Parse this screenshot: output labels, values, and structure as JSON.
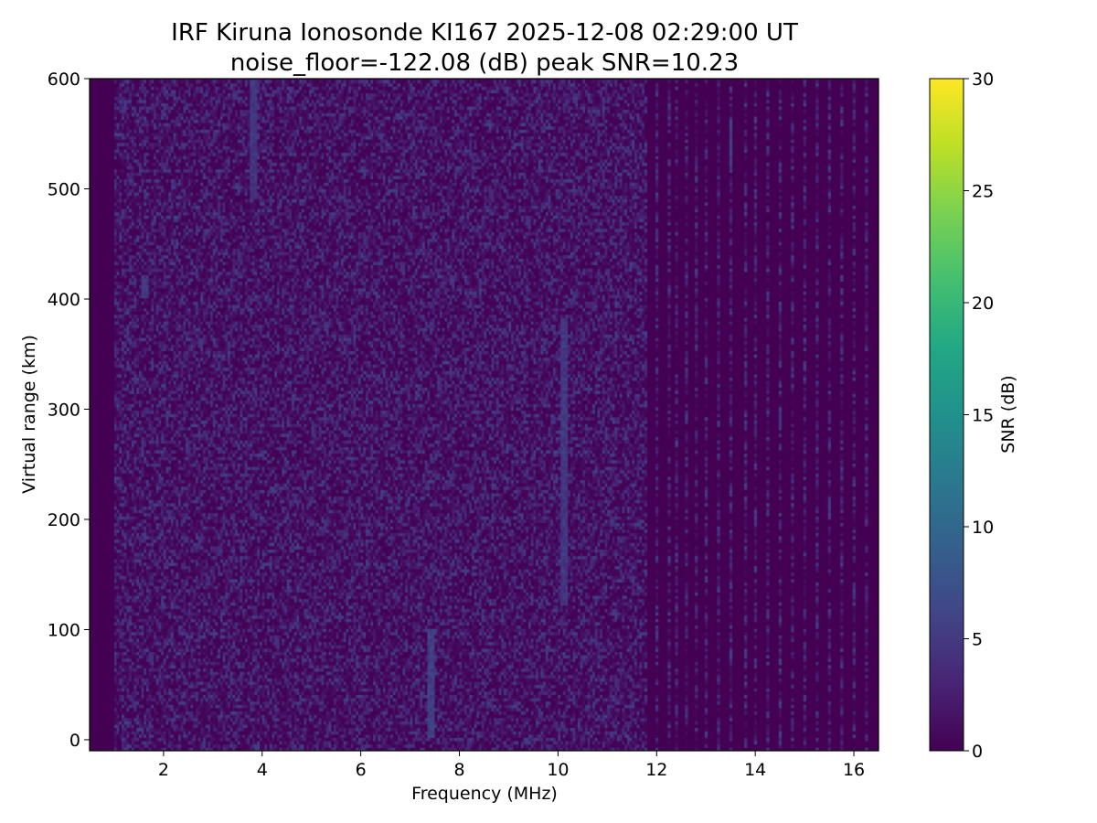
{
  "chart_data": {
    "type": "heatmap",
    "title_lines": [
      "IRF Kiruna Ionosonde KI167 2025-12-08 02:29:00  UT",
      "noise_floor=-122.08 (dB) peak SNR=10.23"
    ],
    "xlabel": "Frequency (MHz)",
    "ylabel": "Virtual range (km)",
    "colorbar_label": "SNR (dB)",
    "colormap": "viridis",
    "xlim": [
      0.5,
      16.5
    ],
    "ylim": [
      -10,
      600
    ],
    "clim": [
      0,
      30
    ],
    "x_ticks": [
      2,
      4,
      6,
      8,
      10,
      12,
      14,
      16
    ],
    "x_tick_labels": [
      "2",
      "4",
      "6",
      "8",
      "10",
      "12",
      "14",
      "16"
    ],
    "y_ticks": [
      0,
      100,
      200,
      300,
      400,
      500,
      600
    ],
    "y_tick_labels": [
      "0",
      "100",
      "200",
      "300",
      "400",
      "500",
      "600"
    ],
    "colorbar_ticks": [
      0,
      5,
      10,
      15,
      20,
      25,
      30
    ],
    "colorbar_tick_labels": [
      "0",
      "5",
      "10",
      "15",
      "20",
      "25",
      "30"
    ],
    "frequency_range_mhz": [
      1.0,
      16.4
    ],
    "range_extent_km": [
      -10,
      600
    ],
    "snr_noise_level_db": [
      0,
      6
    ],
    "snr_peak_db": 10.23,
    "dense_coverage_until_mhz": 11.8,
    "sparse_channels_mhz": [
      12.0,
      12.25,
      12.4,
      12.6,
      12.8,
      13.0,
      13.25,
      13.5,
      13.8,
      14.0,
      14.25,
      14.5,
      14.75,
      15.0,
      15.25,
      15.5,
      15.75,
      16.0,
      16.25
    ],
    "enhanced_features": [
      {
        "freq_mhz": 3.8,
        "range_km": [
          490,
          600
        ],
        "snr_db": 6
      },
      {
        "freq_mhz": 7.4,
        "range_km": [
          0,
          100
        ],
        "snr_db": 7
      },
      {
        "freq_mhz": 10.1,
        "range_km": [
          120,
          380
        ],
        "snr_db": 6
      },
      {
        "freq_mhz": 1.6,
        "range_km": [
          400,
          420
        ],
        "snr_db": 6
      },
      {
        "freq_mhz": 13.5,
        "range_km": [
          520,
          560
        ],
        "snr_db": 7
      },
      {
        "freq_mhz": 15.5,
        "range_km": [
          200,
          220
        ],
        "snr_db": 6
      },
      {
        "freq_mhz": 14.5,
        "range_km": [
          280,
          300
        ],
        "snr_db": 6
      }
    ]
  }
}
